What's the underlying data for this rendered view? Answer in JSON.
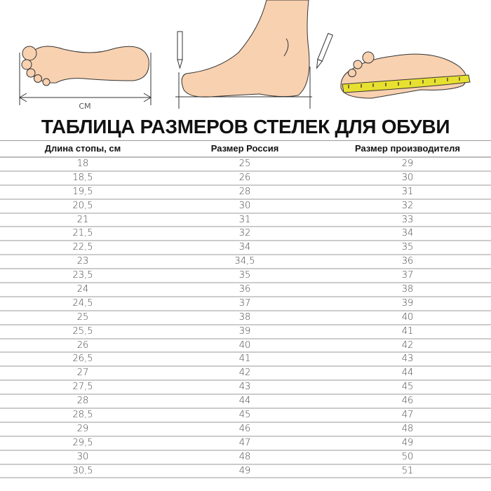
{
  "illustration": {
    "unit_label": "СМ"
  },
  "title": "ТАБЛИЦА РАЗМЕРОВ СТЕЛЕК ДЛЯ ОБУВИ",
  "table": {
    "headers": [
      "Длина стопы, см",
      "Размер Россия",
      "Размер производителя"
    ],
    "rows": [
      [
        "18",
        "25",
        "29"
      ],
      [
        "18,5",
        "26",
        "30"
      ],
      [
        "19,5",
        "28",
        "31"
      ],
      [
        "20,5",
        "30",
        "32"
      ],
      [
        "21",
        "31",
        "33"
      ],
      [
        "21,5",
        "32",
        "34"
      ],
      [
        "22,5",
        "34",
        "35"
      ],
      [
        "23",
        "34,5",
        "36"
      ],
      [
        "23,5",
        "35",
        "37"
      ],
      [
        "24",
        "36",
        "38"
      ],
      [
        "24,5",
        "37",
        "39"
      ],
      [
        "25",
        "38",
        "40"
      ],
      [
        "25,5",
        "39",
        "41"
      ],
      [
        "26",
        "40",
        "42"
      ],
      [
        "26,5",
        "41",
        "43"
      ],
      [
        "27",
        "42",
        "44"
      ],
      [
        "27,5",
        "43",
        "45"
      ],
      [
        "28",
        "44",
        "46"
      ],
      [
        "28,5",
        "45",
        "47"
      ],
      [
        "29",
        "46",
        "48"
      ],
      [
        "29,5",
        "47",
        "49"
      ],
      [
        "30",
        "48",
        "50"
      ],
      [
        "30,5",
        "49",
        "51"
      ]
    ]
  },
  "colors": {
    "skin": "#f8d1b0",
    "tape": "#e8e030",
    "outline": "#333333"
  }
}
